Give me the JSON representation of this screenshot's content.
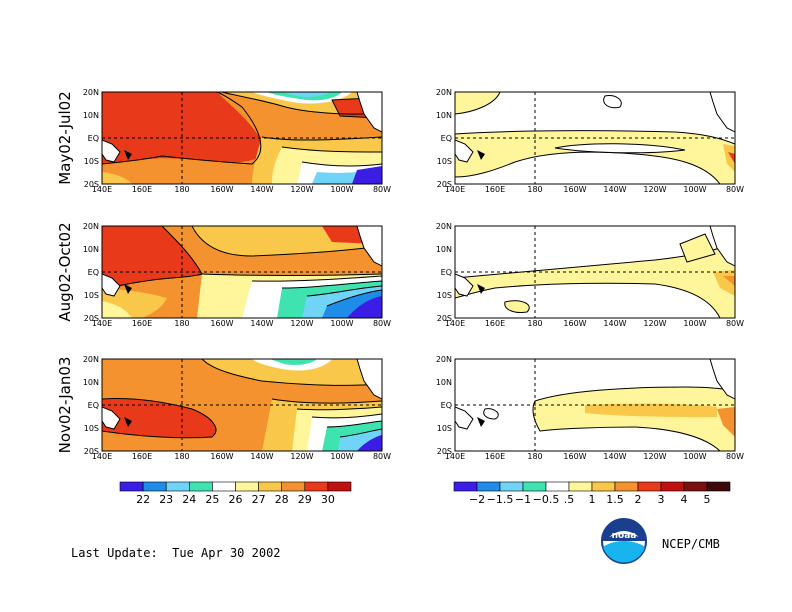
{
  "rows": [
    {
      "label": "May02-Jul02"
    },
    {
      "label": "Aug02-Oct02"
    },
    {
      "label": "Nov02-Jan03"
    }
  ],
  "lat_labels": [
    "20N",
    "10N",
    "EQ",
    "10S",
    "20S"
  ],
  "lon_labels": [
    "140E",
    "160E",
    "180",
    "160W",
    "140W",
    "120W",
    "100W",
    "80W"
  ],
  "legend_left": {
    "labels": [
      "22",
      "23",
      "24",
      "25",
      "26",
      "27",
      "28",
      "29",
      "30"
    ],
    "colors": [
      "#3a1ee6",
      "#1e8ce8",
      "#6fd4f5",
      "#3fe3b0",
      "#ffffff",
      "#fff59a",
      "#f9c84a",
      "#f3922e",
      "#e83a1a",
      "#c01010"
    ]
  },
  "legend_right": {
    "labels": [
      "−2",
      "−1.5",
      "−1",
      "−0.5",
      ".5",
      "1",
      "1.5",
      "2",
      "3",
      "4",
      "5"
    ],
    "colors": [
      "#3a1ee6",
      "#1e8ce8",
      "#6fd4f5",
      "#3fe3b0",
      "#ffffff",
      "#fff59a",
      "#f9c84a",
      "#f3922e",
      "#e83a1a",
      "#c01010",
      "#7a1010",
      "#3c0a0a"
    ]
  },
  "footer": {
    "last_update": "Last Update:  Tue Apr 30 2002",
    "logo_text": "noaa",
    "credit": "NCEP/CMB"
  }
}
